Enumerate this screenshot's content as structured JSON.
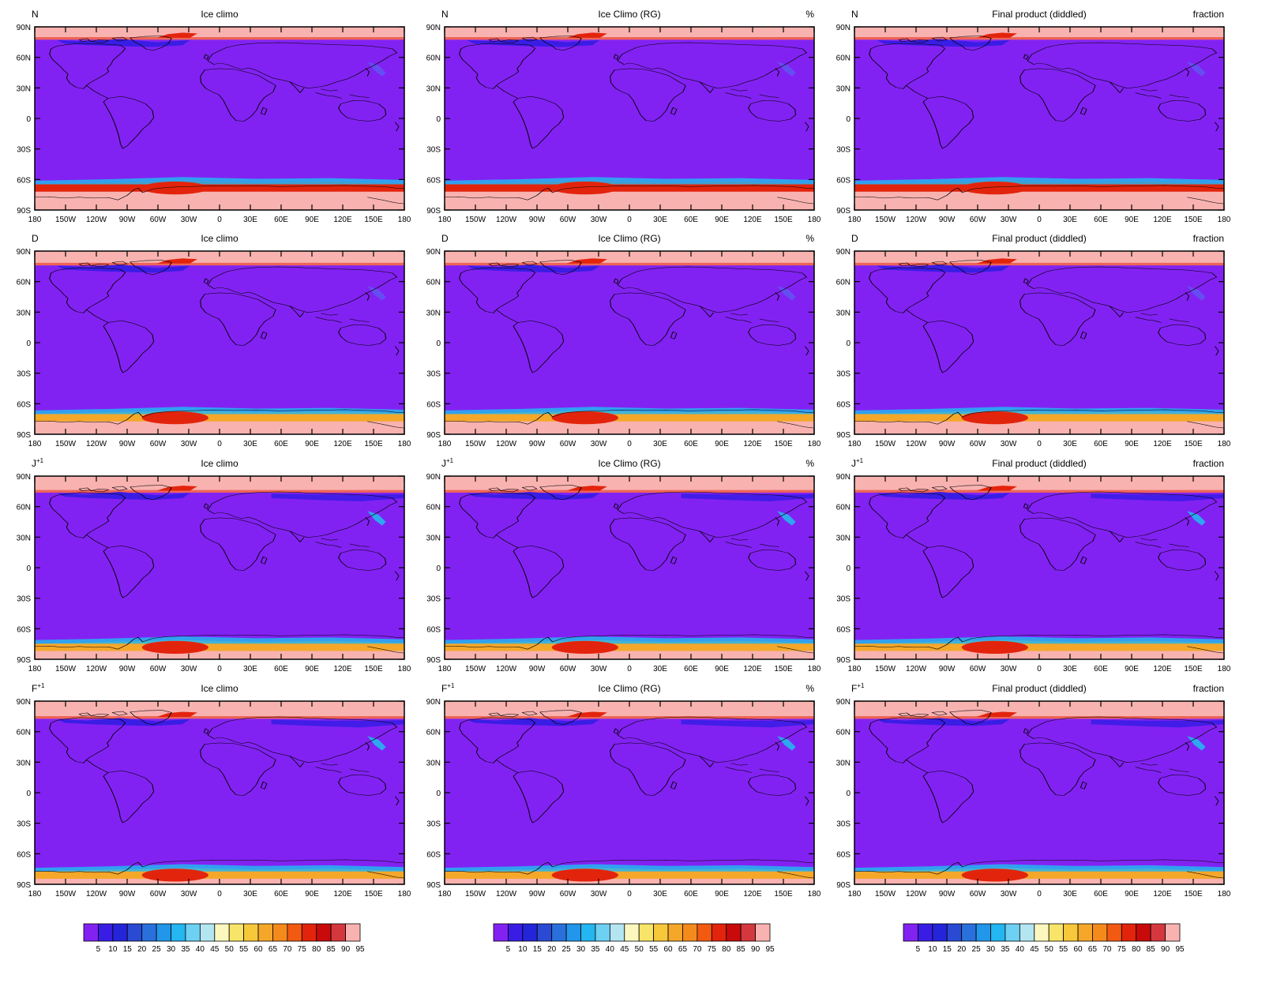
{
  "panel_titles": {
    "col1": "Ice climo",
    "col2": "Ice Climo (RG)",
    "col3": "Final product (diddled)"
  },
  "units": {
    "col1": "",
    "col2": "%",
    "col3": "fraction"
  },
  "rows": [
    {
      "month": "N",
      "sup": ""
    },
    {
      "month": "D",
      "sup": ""
    },
    {
      "month": "J",
      "sup": "+1"
    },
    {
      "month": "F",
      "sup": "+1"
    }
  ],
  "lat_labels": [
    "90N",
    "60N",
    "30N",
    "0",
    "30S",
    "60S",
    "90S"
  ],
  "lon_labels": [
    "180",
    "150W",
    "120W",
    "90W",
    "60W",
    "30W",
    "0",
    "30E",
    "60E",
    "90E",
    "120E",
    "150E",
    "180"
  ],
  "colorbar": {
    "labels": [
      "5",
      "10",
      "15",
      "20",
      "25",
      "30",
      "35",
      "40",
      "45",
      "50",
      "55",
      "60",
      "65",
      "70",
      "75",
      "80",
      "85",
      "90",
      "95"
    ],
    "colors": [
      "#8222f2",
      "#3a1de5",
      "#2424d9",
      "#2a4ad4",
      "#2a70dc",
      "#2196ea",
      "#23b6f0",
      "#6ed0f2",
      "#b4e6f2",
      "#fbf7be",
      "#f7e468",
      "#f7c83a",
      "#f5a72a",
      "#f58a1c",
      "#f25a12",
      "#e3240c",
      "#c80a0a",
      "#d4383e",
      "#f8b2b0"
    ]
  },
  "map_colors": {
    "ocean": "#8222f2",
    "ice_full": "#f8b2b0",
    "ice_high": "#e3240c",
    "ice_mid": "#f5a72a",
    "ice_edge": "#23b6f0",
    "ice_low": "#3a1de5",
    "coast": "#000000"
  }
}
